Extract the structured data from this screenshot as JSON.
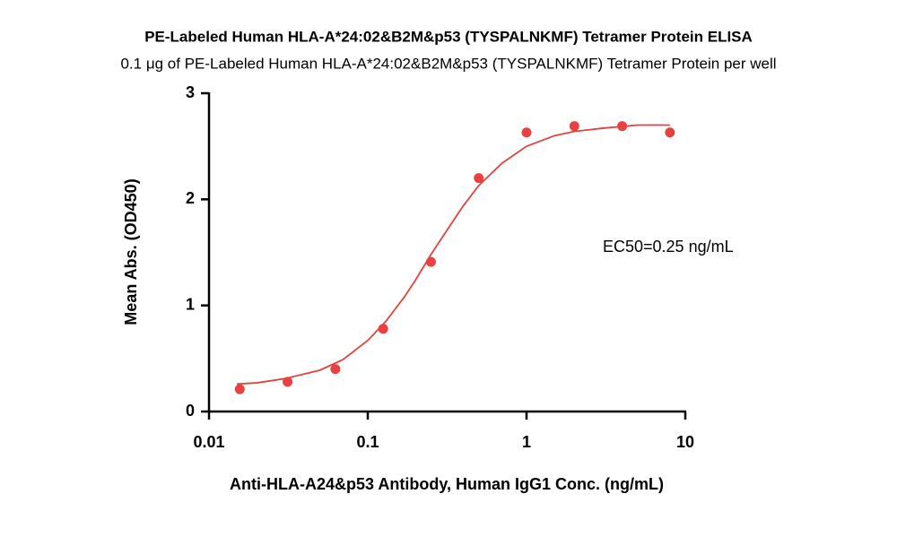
{
  "chart_data": {
    "type": "scatter",
    "title": "PE-Labeled Human HLA-A*24:02&B2M&p53 (TYSPALNKMF) Tetramer Protein ELISA",
    "subtitle": "0.1 μg of PE-Labeled Human HLA-A*24:02&B2M&p53 (TYSPALNKMF) Tetramer Protein per well",
    "x_label": "Anti-HLA-A24&p53 Antibody, Human IgG1 Conc. (ng/mL)",
    "y_label": "Mean Abs. (OD450)",
    "annotation": "EC50=0.25 ng/mL",
    "x": [
      0.015625,
      0.03125,
      0.0625,
      0.125,
      0.25,
      0.5,
      1,
      2,
      4,
      8
    ],
    "values": [
      0.21,
      0.28,
      0.4,
      0.78,
      1.41,
      2.2,
      2.63,
      2.69,
      2.69,
      2.63
    ],
    "color": "#e8413f",
    "fit": {
      "x": [
        0.015,
        0.02,
        0.03,
        0.05,
        0.07,
        0.1,
        0.13,
        0.17,
        0.2,
        0.25,
        0.3,
        0.4,
        0.5,
        0.7,
        1,
        1.5,
        2,
        3,
        5,
        8
      ],
      "values": [
        0.26,
        0.27,
        0.31,
        0.39,
        0.49,
        0.67,
        0.85,
        1.08,
        1.24,
        1.48,
        1.66,
        1.94,
        2.13,
        2.34,
        2.5,
        2.6,
        2.64,
        2.67,
        2.7,
        2.7
      ],
      "color": "#e0443e"
    },
    "xscale": "log",
    "xlim": [
      0.01,
      10
    ],
    "xticks": [
      0.01,
      0.1,
      1,
      10
    ],
    "ylim": [
      0,
      3
    ],
    "yticks": [
      0,
      1,
      2,
      3
    ]
  }
}
